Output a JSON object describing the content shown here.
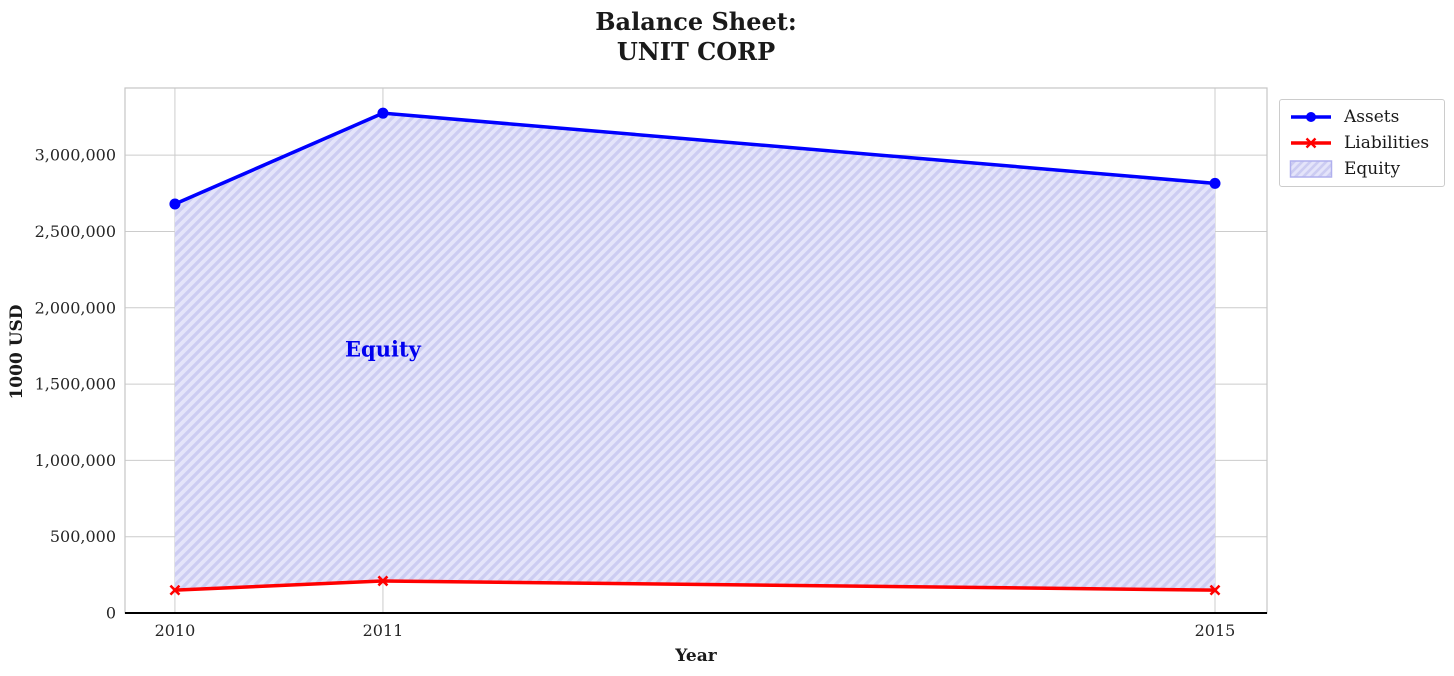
{
  "figure": {
    "title_line1": "Balance Sheet:",
    "title_line2": "UNIT CORP"
  },
  "chart_data": {
    "type": "line",
    "title": "Balance Sheet: UNIT CORP",
    "x": [
      2010,
      2011,
      2015
    ],
    "series": [
      {
        "name": "Assets",
        "color": "#0000ff",
        "marker": "circle",
        "values": [
          2680000,
          3275000,
          2815000
        ]
      },
      {
        "name": "Liabilities",
        "color": "#ff0000",
        "marker": "x",
        "values": [
          150000,
          210000,
          150000
        ]
      }
    ],
    "fill_between": {
      "label": "Equity",
      "between": [
        "Assets",
        "Liabilities"
      ],
      "facecolor": "#e4e4fa",
      "hatch": "//",
      "hatch_color": "#ccccf2",
      "edge_color": "#b0b0ee"
    },
    "annotation": {
      "text": "Equity",
      "x": 2011,
      "y": 1730000,
      "color": "#0000ee"
    },
    "xlabel": "Year",
    "ylabel": "1000 USD",
    "xticks": [
      2010,
      2011,
      2015
    ],
    "xtick_labels": [
      "2010",
      "2011",
      "2015"
    ],
    "yticks": [
      0,
      500000,
      1000000,
      1500000,
      2000000,
      2500000,
      3000000
    ],
    "ytick_labels": [
      "0",
      "500,000",
      "1,000,000",
      "1,500,000",
      "2,000,000",
      "2,500,000",
      "3,000,000"
    ],
    "xlim": [
      2009.76,
      2015.25
    ],
    "ylim": [
      0,
      3440000
    ],
    "grid": true,
    "legend": {
      "position": "upper right outside",
      "entries": [
        "Assets",
        "Liabilities",
        "Equity"
      ]
    }
  },
  "colors": {
    "grid": "#cccccc",
    "spine": "#c6c6c6",
    "axis_bottom": "#000000",
    "text": "#262626",
    "background": "#ffffff"
  }
}
